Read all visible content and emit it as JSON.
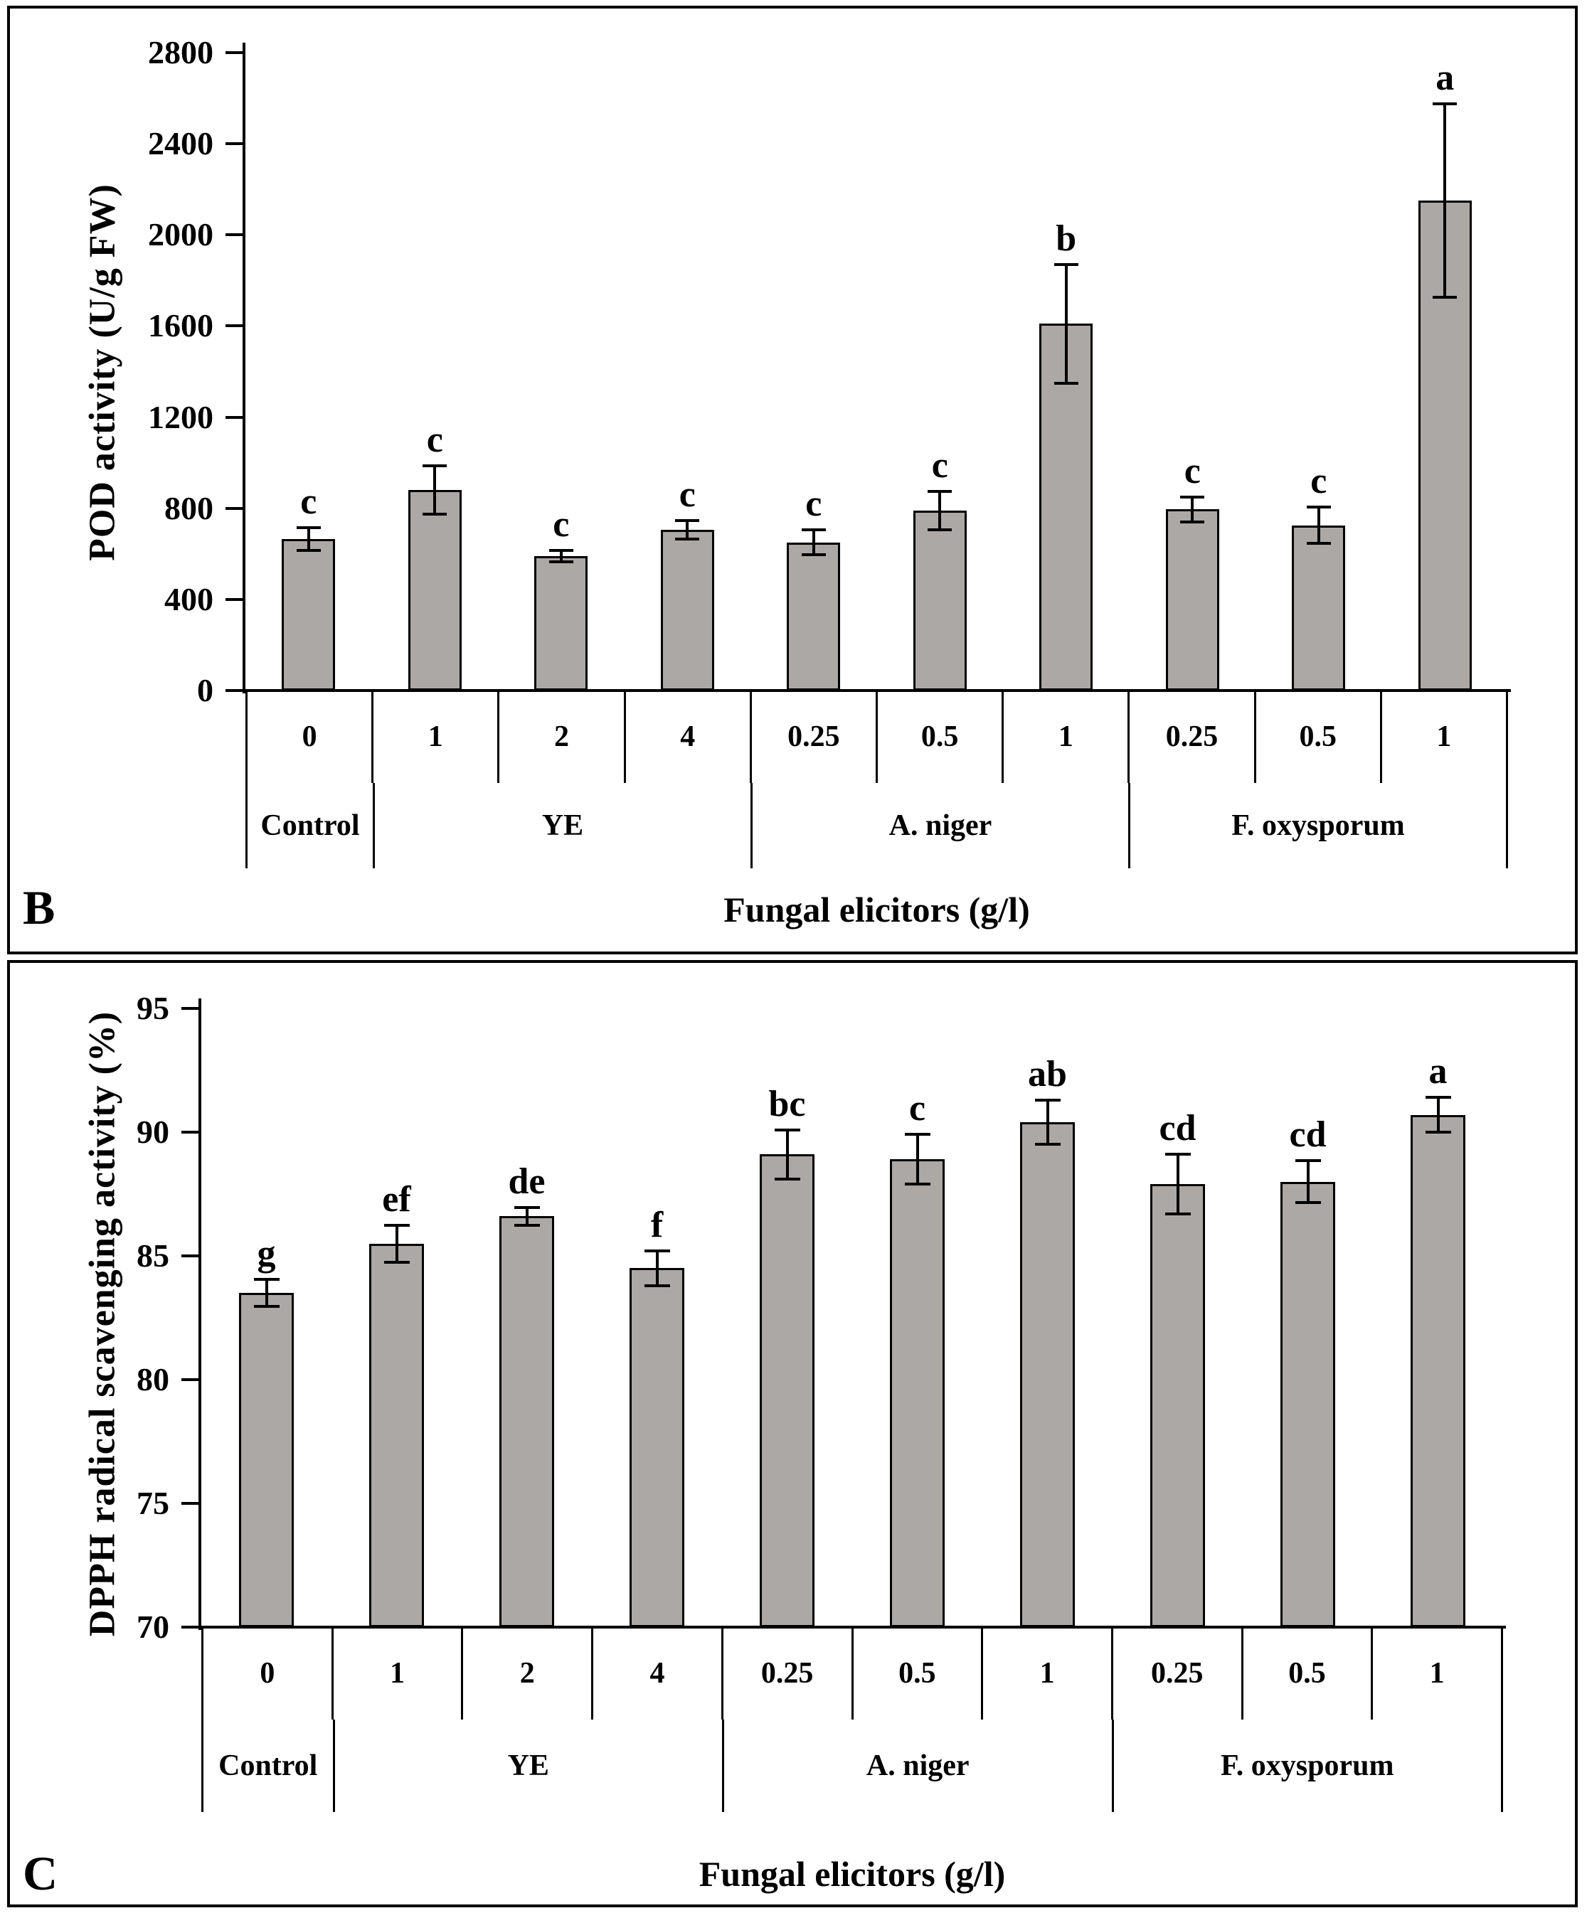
{
  "chart_data": [
    {
      "type": "bar",
      "panel_letter": "B",
      "title": "",
      "ylabel": "POD activity (U/g FW)",
      "xlabel": "Fungal elicitors (g/l)",
      "ylim": [
        0,
        2800
      ],
      "yticks": [
        0,
        400,
        800,
        1200,
        1600,
        2000,
        2400,
        2800
      ],
      "categories": [
        "0",
        "1",
        "2",
        "4",
        "0.25",
        "0.5",
        "1",
        "0.25",
        "0.5",
        "1"
      ],
      "groups": [
        {
          "label": "Control",
          "span": 1
        },
        {
          "label": "YE",
          "span": 3
        },
        {
          "label": "A. niger",
          "span": 3
        },
        {
          "label": "F. oxysporum",
          "span": 3
        }
      ],
      "values": [
        665,
        880,
        590,
        705,
        650,
        790,
        1610,
        795,
        725,
        2150
      ],
      "errors": [
        50,
        105,
        25,
        40,
        55,
        85,
        260,
        55,
        80,
        425
      ],
      "sig_letters": [
        "c",
        "c",
        "c",
        "c",
        "c",
        "c",
        "b",
        "c",
        "c",
        "a"
      ],
      "grid": false,
      "legend": null,
      "bar_color": "#aca8a6",
      "bar_border_color": "#000000"
    },
    {
      "type": "bar",
      "panel_letter": "C",
      "title": "",
      "ylabel": "DPPH radical scavenging activity  (%)",
      "xlabel": "Fungal elicitors (g/l)",
      "ylim": [
        70,
        95
      ],
      "yticks": [
        70,
        75,
        80,
        85,
        90,
        95
      ],
      "categories": [
        "0",
        "1",
        "2",
        "4",
        "0.25",
        "0.5",
        "1",
        "0.25",
        "0.5",
        "1"
      ],
      "groups": [
        {
          "label": "Control",
          "span": 1
        },
        {
          "label": "YE",
          "span": 3
        },
        {
          "label": "A. niger",
          "span": 3
        },
        {
          "label": "F. oxysporum",
          "span": 3
        }
      ],
      "values": [
        83.5,
        85.5,
        86.6,
        84.5,
        89.1,
        88.9,
        90.4,
        87.9,
        88.0,
        90.7
      ],
      "errors": [
        0.55,
        0.75,
        0.35,
        0.7,
        1.0,
        1.0,
        0.9,
        1.2,
        0.85,
        0.7
      ],
      "sig_letters": [
        "g",
        "ef",
        "de",
        "f",
        "bc",
        "c",
        "ab",
        "cd",
        "cd",
        "a"
      ],
      "grid": false,
      "legend": null,
      "bar_color": "#aca8a6",
      "bar_border_color": "#000000"
    }
  ]
}
